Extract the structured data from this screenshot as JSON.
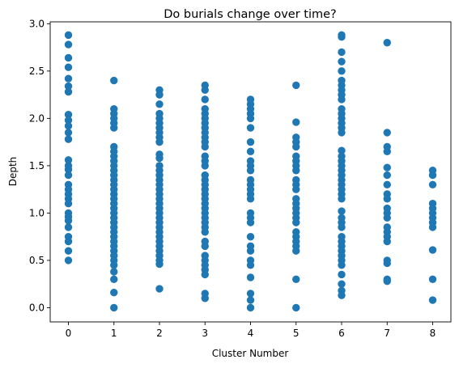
{
  "chart_data": {
    "type": "scatter",
    "title": "Do burials change over time?",
    "xlabel": "Cluster Number",
    "ylabel": "Depth",
    "xlim": [
      -0.4,
      8.4
    ],
    "ylim": [
      -0.15,
      3.02
    ],
    "xticks": [
      0,
      1,
      2,
      3,
      4,
      5,
      6,
      7,
      8
    ],
    "yticks": [
      0.0,
      0.5,
      1.0,
      1.5,
      2.0,
      2.5,
      3.0
    ],
    "ytick_labels": [
      "0.0",
      "0.5",
      "1.0",
      "1.5",
      "2.0",
      "2.5",
      "3.0"
    ],
    "grid": false,
    "marker_color": "#1f77b4",
    "series": [
      {
        "points": [
          {
            "x": 0,
            "depths": [
              2.88,
              2.78,
              2.64,
              2.54,
              2.42,
              2.34,
              2.28,
              2.04,
              1.98,
              1.92,
              1.85,
              1.78,
              1.56,
              1.5,
              1.46,
              1.4,
              1.3,
              1.25,
              1.2,
              1.15,
              1.1,
              1.0,
              0.96,
              0.92,
              0.85,
              0.75,
              0.7,
              0.6,
              0.5
            ]
          },
          {
            "x": 1,
            "depths": [
              2.4,
              2.1,
              2.05,
              2.0,
              1.95,
              1.9,
              1.7,
              1.65,
              1.6,
              1.55,
              1.5,
              1.45,
              1.4,
              1.35,
              1.3,
              1.25,
              1.2,
              1.15,
              1.1,
              1.05,
              1.0,
              0.95,
              0.9,
              0.85,
              0.8,
              0.75,
              0.7,
              0.65,
              0.6,
              0.55,
              0.5,
              0.45,
              0.38,
              0.3,
              0.16,
              0.0
            ]
          },
          {
            "x": 2,
            "depths": [
              2.3,
              2.25,
              2.15,
              2.05,
              2.0,
              1.95,
              1.9,
              1.85,
              1.8,
              1.75,
              1.62,
              1.58,
              1.5,
              1.45,
              1.4,
              1.35,
              1.3,
              1.25,
              1.2,
              1.15,
              1.1,
              1.05,
              1.0,
              0.95,
              0.9,
              0.85,
              0.8,
              0.75,
              0.7,
              0.65,
              0.6,
              0.55,
              0.5,
              0.46,
              0.2
            ]
          },
          {
            "x": 3,
            "depths": [
              2.35,
              2.3,
              2.2,
              2.1,
              2.05,
              2.0,
              1.95,
              1.9,
              1.85,
              1.8,
              1.75,
              1.7,
              1.6,
              1.55,
              1.5,
              1.4,
              1.35,
              1.3,
              1.25,
              1.2,
              1.15,
              1.1,
              1.05,
              1.0,
              0.95,
              0.9,
              0.85,
              0.8,
              0.7,
              0.65,
              0.55,
              0.5,
              0.45,
              0.4,
              0.35,
              0.15,
              0.1
            ]
          },
          {
            "x": 4,
            "depths": [
              2.2,
              2.15,
              2.1,
              2.05,
              2.0,
              1.9,
              1.75,
              1.65,
              1.55,
              1.5,
              1.45,
              1.35,
              1.3,
              1.25,
              1.2,
              1.15,
              1.0,
              0.95,
              0.9,
              0.75,
              0.65,
              0.6,
              0.5,
              0.45,
              0.32,
              0.15,
              0.08,
              0.0
            ]
          },
          {
            "x": 5,
            "depths": [
              2.35,
              1.96,
              1.8,
              1.75,
              1.7,
              1.6,
              1.55,
              1.5,
              1.45,
              1.35,
              1.3,
              1.25,
              1.15,
              1.1,
              1.05,
              1.0,
              0.95,
              0.9,
              0.8,
              0.75,
              0.7,
              0.65,
              0.6,
              0.3,
              0.0
            ]
          },
          {
            "x": 6,
            "depths": [
              2.88,
              2.86,
              2.7,
              2.6,
              2.5,
              2.4,
              2.35,
              2.3,
              2.25,
              2.2,
              2.1,
              2.05,
              2.0,
              1.95,
              1.9,
              1.85,
              1.66,
              1.6,
              1.55,
              1.5,
              1.45,
              1.4,
              1.35,
              1.3,
              1.25,
              1.2,
              1.15,
              1.02,
              0.95,
              0.9,
              0.85,
              0.75,
              0.7,
              0.65,
              0.6,
              0.55,
              0.5,
              0.45,
              0.35,
              0.25,
              0.18,
              0.13
            ]
          },
          {
            "x": 7,
            "depths": [
              2.8,
              1.85,
              1.7,
              1.65,
              1.48,
              1.4,
              1.3,
              1.2,
              1.15,
              1.05,
              1.0,
              0.95,
              0.85,
              0.8,
              0.75,
              0.7,
              0.5,
              0.47,
              0.3,
              0.28
            ]
          },
          {
            "x": 8,
            "depths": [
              1.45,
              1.4,
              1.3,
              1.1,
              1.05,
              1.0,
              0.95,
              0.9,
              0.85,
              0.61,
              0.3,
              0.08
            ]
          }
        ]
      }
    ]
  }
}
